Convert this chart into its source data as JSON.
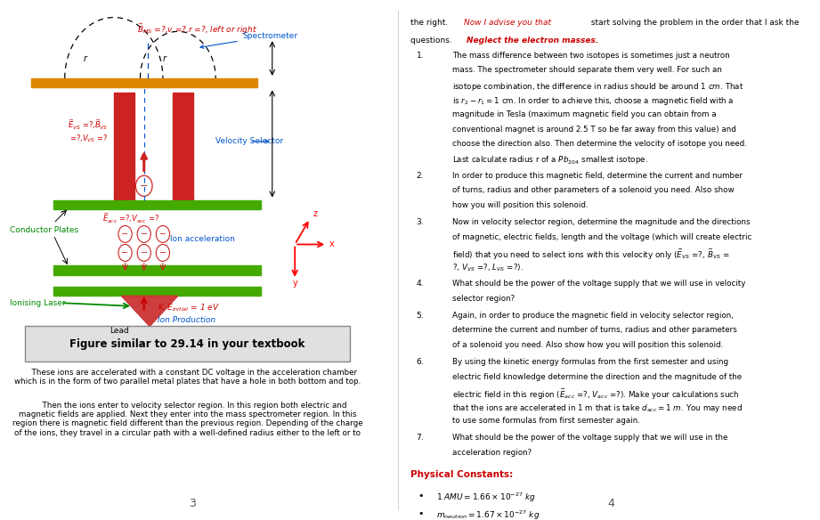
{
  "page_bg": "#ffffff",
  "color_red": "#cc0000",
  "color_green": "#008800",
  "color_blue": "#0055cc",
  "color_orange": "#cc7700",
  "color_dark": "#222222",
  "color_gray": "#888888",
  "page_num_left": "3",
  "page_num_right": "4",
  "figure_caption": "Figure similar to 29.14 in your textbook"
}
